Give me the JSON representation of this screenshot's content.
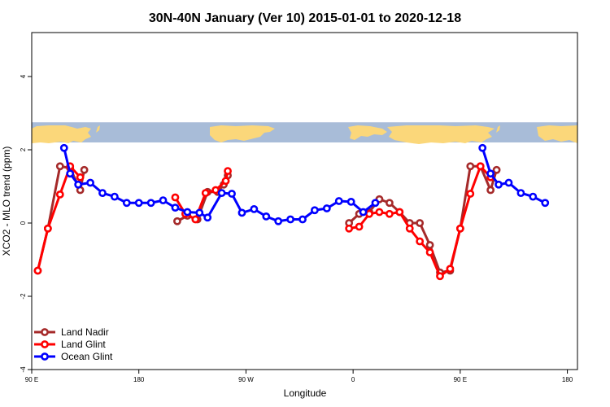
{
  "chart_data": {
    "type": "line",
    "title": "30N-40N January (Ver 10)   2015-01-01 to 2020-12-18",
    "xlabel": "Longitude",
    "ylabel": "XCO2 - MLO trend (ppm)",
    "xlim": [
      -90,
      180
    ],
    "ylim": [
      -4.0,
      5.2
    ],
    "x_ticks": [
      {
        "value": -90,
        "label": "90 E"
      },
      {
        "value": -37,
        "label": "180"
      },
      {
        "value": 16,
        "label": "90 W"
      },
      {
        "value": 69,
        "label": "0"
      },
      {
        "value": 122,
        "label": "90 E"
      },
      {
        "value": 175,
        "label": "180"
      }
    ],
    "y_ticks": [
      {
        "value": -4,
        "label": "-4"
      },
      {
        "value": -2,
        "label": "-2"
      },
      {
        "value": 0,
        "label": "0"
      },
      {
        "value": 2,
        "label": "2"
      },
      {
        "value": 4,
        "label": "4"
      }
    ],
    "grid": false,
    "legend_position": "bottom-left",
    "map_strip": {
      "y_from": 2.2,
      "y_to": 2.75,
      "ocean_color": "#a8bcd8",
      "land_color": "#fbd77a"
    },
    "series": [
      {
        "name": "Land Nadir",
        "color": "#a52a2a",
        "segments": [
          [
            [
              -87,
              -1.3
            ],
            [
              -82,
              -0.15
            ],
            [
              -76,
              1.55
            ],
            [
              -71,
              1.5
            ],
            [
              -66,
              0.9
            ],
            [
              -64,
              1.45
            ]
          ],
          [
            [
              -18,
              0.05
            ],
            [
              -13,
              0.2
            ],
            [
              -8,
              0.1
            ],
            [
              -3,
              0.85
            ],
            [
              2,
              0.85
            ],
            [
              5,
              1.05
            ],
            [
              7,
              1.3
            ]
          ],
          [
            [
              67,
              0.0
            ],
            [
              72,
              0.25
            ],
            [
              77,
              0.3
            ],
            [
              82,
              0.65
            ],
            [
              87,
              0.55
            ],
            [
              92,
              0.3
            ],
            [
              97,
              0.0
            ],
            [
              102,
              0.0
            ],
            [
              107,
              -0.6
            ],
            [
              112,
              -1.35
            ],
            [
              117,
              -1.3
            ],
            [
              122,
              -0.15
            ],
            [
              127,
              1.55
            ],
            [
              132,
              1.55
            ],
            [
              137,
              0.9
            ],
            [
              140,
              1.45
            ]
          ]
        ]
      },
      {
        "name": "Land Glint",
        "color": "#ff0000",
        "segments": [
          [
            [
              -87,
              -1.3
            ],
            [
              -82,
              -0.15
            ],
            [
              -76,
              0.78
            ],
            [
              -71,
              1.55
            ],
            [
              -66,
              1.25
            ]
          ],
          [
            [
              -19,
              0.7
            ],
            [
              -14,
              0.25
            ],
            [
              -9,
              0.1
            ],
            [
              -4,
              0.82
            ],
            [
              1,
              0.9
            ],
            [
              6,
              1.15
            ],
            [
              7,
              1.42
            ]
          ],
          [
            [
              67,
              -0.15
            ],
            [
              72,
              -0.1
            ],
            [
              77,
              0.25
            ],
            [
              82,
              0.3
            ],
            [
              87,
              0.25
            ],
            [
              92,
              0.3
            ],
            [
              97,
              -0.15
            ],
            [
              102,
              -0.5
            ],
            [
              107,
              -0.8
            ],
            [
              112,
              -1.45
            ],
            [
              117,
              -1.25
            ],
            [
              122,
              -0.15
            ],
            [
              127,
              0.8
            ],
            [
              132,
              1.55
            ],
            [
              137,
              1.25
            ]
          ]
        ]
      },
      {
        "name": "Ocean Glint",
        "color": "#0000ff",
        "segments": [
          [
            [
              -74,
              2.05
            ],
            [
              -71,
              1.35
            ],
            [
              -67,
              1.05
            ],
            [
              -61,
              1.1
            ],
            [
              -55,
              0.82
            ],
            [
              -49,
              0.72
            ],
            [
              -43,
              0.55
            ],
            [
              -37,
              0.55
            ],
            [
              -31,
              0.55
            ],
            [
              -25,
              0.62
            ],
            [
              -19,
              0.42
            ],
            [
              -13,
              0.3
            ],
            [
              -7,
              0.28
            ],
            [
              -3,
              0.15
            ],
            [
              4,
              0.82
            ],
            [
              9,
              0.8
            ],
            [
              14,
              0.28
            ],
            [
              20,
              0.38
            ],
            [
              26,
              0.18
            ],
            [
              32,
              0.05
            ],
            [
              38,
              0.1
            ],
            [
              44,
              0.1
            ],
            [
              50,
              0.35
            ],
            [
              56,
              0.4
            ],
            [
              62,
              0.6
            ],
            [
              68,
              0.58
            ],
            [
              74,
              0.3
            ],
            [
              80,
              0.55
            ]
          ],
          [
            [
              133,
              2.05
            ],
            [
              137,
              1.35
            ],
            [
              141,
              1.05
            ],
            [
              146,
              1.1
            ],
            [
              152,
              0.82
            ],
            [
              158,
              0.72
            ],
            [
              164,
              0.55
            ]
          ]
        ]
      }
    ]
  }
}
